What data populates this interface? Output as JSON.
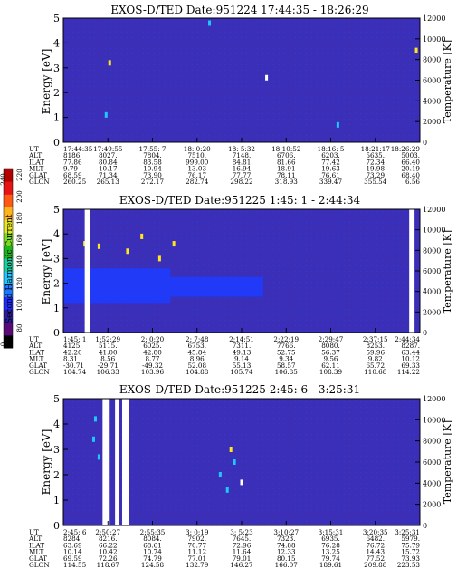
{
  "figure": {
    "colorbar": {
      "label": "Second Harmonic Current",
      "ticks": [
        "0",
        "80",
        "100",
        "120",
        "140",
        "160",
        "180",
        "200",
        "220",
        "240"
      ],
      "colors": [
        "#000000",
        "#5a0a78",
        "#2a1aa0",
        "#1e2aff",
        "#1e78ff",
        "#1ec8ff",
        "#14d2a0",
        "#1eb41e",
        "#7adc1e",
        "#e6e61e",
        "#ffb41e",
        "#ff5a14",
        "#e61414",
        "#b40000"
      ]
    },
    "panels": [
      {
        "title": "EXOS-D/TED   Date:951224  17:44:35 - 18:26:29",
        "ylabel": "Energy [eV]",
        "y2label": "Temperature [K]",
        "background": "#3a2fb8",
        "row_labels": [
          "UT",
          "ALT",
          "ILAT",
          "MLT",
          "GLAT",
          "GLON"
        ],
        "columns": [
          [
            "17:44:35",
            "8186.",
            "77.86",
            "9.79",
            "68.59",
            "260.25"
          ],
          [
            "17:49:55",
            "8027.",
            "80.84",
            "10.17",
            "71.34",
            "265.13"
          ],
          [
            "17:55: 7",
            "7804.",
            "83.58",
            "10.94",
            "73.90",
            "272.17"
          ],
          [
            "18: 0:20",
            "7510.",
            "999.00",
            "13.03",
            "76.17",
            "282.74"
          ],
          [
            "18: 5:32",
            "7148.",
            "84.81",
            "16.94",
            "77.77",
            "298.22"
          ],
          [
            "18:10:52",
            "6706.",
            "81.66",
            "18.91",
            "78.11",
            "318.93"
          ],
          [
            "18:16: 5",
            "6203.",
            "77.42",
            "19.63",
            "76.61",
            "339.47"
          ],
          [
            "18:21:17",
            "5635.",
            "72.34",
            "19.98",
            "73.29",
            "355.54"
          ],
          [
            "18:26:29",
            "5003.",
            "66.40",
            "20.19",
            "68.40",
            "6.56"
          ]
        ]
      },
      {
        "title": "EXOS-D/TED   Date:951225   1:45: 1 - 2:44:34",
        "ylabel": "Energy [eV]",
        "y2label": "Temperature [K]",
        "background": "#3a2fb8",
        "row_labels": [
          "UT",
          "ALT",
          "ILAT",
          "MLT",
          "GLAT",
          "GLON"
        ],
        "columns": [
          [
            "1:45: 1",
            "4125.",
            "42.20",
            "8.31",
            "-30.71",
            "104.74"
          ],
          [
            "1:52:29",
            "5115.",
            "41.00",
            "8.56",
            "-29.71",
            "106.33"
          ],
          [
            "2: 0:20",
            "6025.",
            "42.80",
            "8.77",
            "-49.32",
            "103.96"
          ],
          [
            "2: 7:48",
            "6753.",
            "45.84",
            "8.96",
            "52.08",
            "104.88"
          ],
          [
            "2:14:51",
            "7311.",
            "49.13",
            "9.14",
            "55.13",
            "105.74"
          ],
          [
            "2:22:19",
            "7766.",
            "52.75",
            "9.34",
            "58.57",
            "106.85"
          ],
          [
            "2:29:47",
            "8080.",
            "56.37",
            "9.56",
            "62.11",
            "108.39"
          ],
          [
            "2:37:15",
            "8253.",
            "59.96",
            "9.82",
            "65.72",
            "110.68"
          ],
          [
            "2:44:34",
            "8287.",
            "63.44",
            "10.12",
            "69.33",
            "114.22"
          ]
        ]
      },
      {
        "title": "EXOS-D/TED   Date:951225   2:45: 6 - 3:25:31",
        "ylabel": "Energy [eV]",
        "y2label": "Temperature [K]",
        "background": "#3a2fb8",
        "row_labels": [
          "UT",
          "ALT",
          "ILAT",
          "MLT",
          "GLAT",
          "GLON"
        ],
        "columns": [
          [
            "2:45: 6",
            "8284.",
            "63.69",
            "10.14",
            "69.59",
            "114.55"
          ],
          [
            "2:50:27",
            "8216.",
            "66.22",
            "10.42",
            "72.26",
            "118.67"
          ],
          [
            "2:55:35",
            "8084.",
            "68.61",
            "10.74",
            "74.79",
            "124.58"
          ],
          [
            "3: 0:19",
            "7902.",
            "70.77",
            "11.12",
            "77.01",
            "132.79"
          ],
          [
            "3: 5:23",
            "7645.",
            "72.96",
            "11.64",
            "79.01",
            "146.27"
          ],
          [
            "3:10:27",
            "7323.",
            "74.88",
            "12.33",
            "80.15",
            "166.07"
          ],
          [
            "3:15:31",
            "6935.",
            "76.28",
            "13.25",
            "79.74",
            "189.61"
          ],
          [
            "3:20:35",
            "6482.",
            "76.72",
            "14.43",
            "77.52",
            "209.88"
          ],
          [
            "3:25:31",
            "5979.",
            "75.79",
            "15.72",
            "73.93",
            "223.53"
          ]
        ]
      }
    ]
  },
  "chart_data": [
    {
      "type": "heatmap",
      "title": "EXOS-D/TED   Date:951224  17:44:35 - 18:26:29",
      "xlabel": "UT",
      "ylabel": "Energy [eV]",
      "y2label": "Temperature [K]",
      "x_ticks": [
        "17:44:35",
        "17:49:55",
        "17:55: 7",
        "18: 0:20",
        "18: 5:32",
        "18:10:52",
        "18:16: 5",
        "18:21:17",
        "18:26:29"
      ],
      "ylim": [
        0,
        5
      ],
      "yticks": [
        0,
        1,
        2,
        3,
        4,
        5
      ],
      "y2lim": [
        0,
        12000
      ],
      "y2ticks": [
        0,
        2000,
        4000,
        6000,
        8000,
        10000,
        12000
      ],
      "grid": false,
      "bands": [],
      "features": [
        {
          "kind": "spot",
          "t": 0.13,
          "e": 3.2,
          "level": "yellow"
        },
        {
          "kind": "spot",
          "t": 0.12,
          "e": 1.1,
          "level": "cyan"
        },
        {
          "kind": "spot",
          "t": 0.41,
          "e": 4.8,
          "level": "cyan"
        },
        {
          "kind": "spot",
          "t": 0.57,
          "e": 2.6,
          "level": "white"
        },
        {
          "kind": "spot",
          "t": 0.77,
          "e": 0.7,
          "level": "cyan"
        },
        {
          "kind": "spot",
          "t": 0.99,
          "e": 3.7,
          "level": "yellow"
        }
      ],
      "gaps": []
    },
    {
      "type": "heatmap",
      "title": "EXOS-D/TED   Date:951225   1:45: 1 - 2:44:34",
      "xlabel": "UT",
      "ylabel": "Energy [eV]",
      "y2label": "Temperature [K]",
      "x_ticks": [
        "1:45: 1",
        "1:52:29",
        "2: 0:20",
        "2: 7:48",
        "2:14:51",
        "2:22:19",
        "2:29:47",
        "2:37:15",
        "2:44:34"
      ],
      "ylim": [
        0,
        5
      ],
      "yticks": [
        0,
        1,
        2,
        3,
        4,
        5
      ],
      "y2lim": [
        0,
        12000
      ],
      "y2ticks": [
        0,
        2000,
        4000,
        6000,
        8000,
        10000,
        12000
      ],
      "grid": false,
      "bands": [
        {
          "t0": 0.0,
          "t1": 0.3,
          "e0": 1.2,
          "e1": 2.6,
          "level": "blue"
        },
        {
          "t0": 0.3,
          "t1": 0.56,
          "e0": 1.45,
          "e1": 2.25,
          "level": "blue"
        }
      ],
      "features": [
        {
          "kind": "spot",
          "t": 0.06,
          "e": 3.6,
          "level": "yellow"
        },
        {
          "kind": "spot",
          "t": 0.1,
          "e": 3.5,
          "level": "yellow"
        },
        {
          "kind": "spot",
          "t": 0.18,
          "e": 3.3,
          "level": "yellow"
        },
        {
          "kind": "spot",
          "t": 0.22,
          "e": 3.9,
          "level": "yellow"
        },
        {
          "kind": "spot",
          "t": 0.27,
          "e": 3.0,
          "level": "yellow"
        },
        {
          "kind": "spot",
          "t": 0.31,
          "e": 3.6,
          "level": "yellow"
        }
      ],
      "gaps": [
        {
          "t0": 0.06,
          "t1": 0.075
        },
        {
          "t0": 0.97,
          "t1": 0.985
        }
      ]
    },
    {
      "type": "heatmap",
      "title": "EXOS-D/TED   Date:951225   2:45: 6 - 3:25:31",
      "xlabel": "UT",
      "ylabel": "Energy [eV]",
      "y2label": "Temperature [K]",
      "x_ticks": [
        "2:45: 6",
        "2:50:27",
        "2:55:35",
        "3: 0:19",
        "3: 5:23",
        "3:10:27",
        "3:15:31",
        "3:20:35",
        "3:25:31"
      ],
      "ylim": [
        0,
        5
      ],
      "yticks": [
        0,
        1,
        2,
        3,
        4,
        5
      ],
      "y2lim": [
        0,
        12000
      ],
      "y2ticks": [
        0,
        2000,
        4000,
        6000,
        8000,
        10000,
        12000
      ],
      "grid": false,
      "bands": [],
      "features": [
        {
          "kind": "spot",
          "t": 0.09,
          "e": 4.2,
          "level": "cyan"
        },
        {
          "kind": "spot",
          "t": 0.085,
          "e": 3.4,
          "level": "cyan"
        },
        {
          "kind": "spot",
          "t": 0.1,
          "e": 2.7,
          "level": "cyan"
        },
        {
          "kind": "spot",
          "t": 0.15,
          "e": 4.4,
          "level": "yellow"
        },
        {
          "kind": "spot",
          "t": 0.44,
          "e": 2.0,
          "level": "cyan"
        },
        {
          "kind": "spot",
          "t": 0.46,
          "e": 1.4,
          "level": "cyan"
        },
        {
          "kind": "spot",
          "t": 0.48,
          "e": 2.5,
          "level": "cyan"
        },
        {
          "kind": "spot",
          "t": 0.5,
          "e": 1.7,
          "level": "white"
        },
        {
          "kind": "spot",
          "t": 0.47,
          "e": 3.0,
          "level": "yellow"
        }
      ],
      "gaps": [
        {
          "t0": 0.11,
          "t1": 0.13
        },
        {
          "t0": 0.145,
          "t1": 0.155
        },
        {
          "t0": 0.165,
          "t1": 0.185
        }
      ]
    }
  ]
}
